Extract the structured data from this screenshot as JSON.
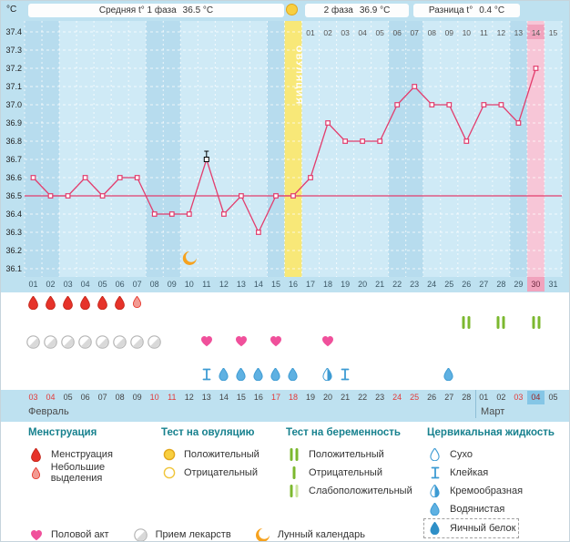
{
  "colors": {
    "page_bg": "#bee1f0",
    "accent_line": "#e23d6d",
    "menstruation": "#e6332a",
    "menstruation_light": "#f29a92",
    "heart": "#f0509b",
    "test_green": "#7cb82f",
    "test_green_pale": "#cbe49c",
    "fluid_blue": "#3d9bd3",
    "fluid_light": "#5fb1e2",
    "fluid_dark": "#2e8fc7",
    "moon": "#f6a21e",
    "ovulation_band": "#f8e878",
    "ovulation_positive": "#f8cf40",
    "current_day": "#f7c6d7",
    "current_day_strong": "#f1a3bd",
    "weekend_col": "#b7dcee",
    "day_col": "#cfeaf6",
    "legend_header": "#17818e",
    "red_date": "#e23a3a",
    "today_bg": "#85c6e6"
  },
  "header": {
    "stats": [
      {
        "label": "Средняя t° 1 фаза",
        "value": "36.5 °C"
      },
      {
        "label": "2 фаза",
        "value": "36.9 °C"
      },
      {
        "label": "Разница t°",
        "value": "0.4 °C"
      }
    ]
  },
  "chart_data": {
    "type": "line",
    "unit": "°C",
    "ylim": [
      36.1,
      37.4
    ],
    "ytick_step": 0.1,
    "cycle_days": [
      "01",
      "02",
      "03",
      "04",
      "05",
      "06",
      "07",
      "08",
      "09",
      "10",
      "11",
      "12",
      "13",
      "14",
      "15",
      "16",
      "17",
      "18",
      "19",
      "20",
      "21",
      "22",
      "23",
      "24",
      "25",
      "26",
      "27",
      "28",
      "29",
      "30",
      "31"
    ],
    "temps": [
      36.6,
      36.5,
      36.5,
      36.6,
      36.5,
      36.6,
      36.6,
      36.4,
      36.4,
      36.4,
      36.7,
      36.4,
      36.5,
      36.3,
      36.5,
      36.5,
      36.6,
      36.9,
      36.8,
      36.8,
      36.8,
      37.0,
      37.1,
      37.0,
      37.0,
      36.8,
      37.0,
      37.0,
      36.9,
      37.2,
      null
    ],
    "excluded_days": [
      11
    ],
    "coverline": 36.5,
    "ovulation": {
      "day": 16,
      "label": "ОВУЛЯЦИЯ"
    },
    "current_day": 30,
    "weekend_days": [
      1,
      2,
      8,
      9,
      15,
      16,
      22,
      23,
      29,
      30
    ],
    "dpo": {
      "start_day": 17,
      "labels": [
        "01",
        "02",
        "03",
        "04",
        "05",
        "06",
        "07",
        "08",
        "09",
        "10",
        "11",
        "12",
        "13",
        "14",
        "15"
      ],
      "highlight": "14"
    },
    "moon_day": 10,
    "legend_position": "bottom",
    "grid": true
  },
  "events": {
    "menstruation_days": [
      1,
      2,
      3,
      4,
      5,
      6
    ],
    "spotting_days": [
      7
    ],
    "medication_days": [
      1,
      2,
      3,
      4,
      5,
      6,
      7,
      8
    ],
    "intercourse_days": [
      11,
      13,
      15,
      18
    ],
    "pregnancy_positive_days": [
      26,
      28,
      30
    ],
    "cervical_fluid": [
      {
        "day": 11,
        "type": "sticky"
      },
      {
        "day": 12,
        "type": "watery"
      },
      {
        "day": 13,
        "type": "watery"
      },
      {
        "day": 14,
        "type": "watery"
      },
      {
        "day": 15,
        "type": "watery"
      },
      {
        "day": 16,
        "type": "watery"
      },
      {
        "day": 18,
        "type": "creamy"
      },
      {
        "day": 19,
        "type": "sticky"
      },
      {
        "day": 25,
        "type": "watery"
      }
    ]
  },
  "calendar": {
    "month_labels": [
      "Февраль",
      "Март"
    ],
    "dates": [
      "03",
      "04",
      "05",
      "06",
      "07",
      "08",
      "09",
      "10",
      "11",
      "12",
      "13",
      "14",
      "15",
      "16",
      "17",
      "18",
      "19",
      "20",
      "21",
      "22",
      "23",
      "24",
      "25",
      "26",
      "27",
      "28",
      "01",
      "02",
      "03",
      "04",
      "05"
    ],
    "red_indices": [
      0,
      1,
      7,
      8,
      14,
      15,
      21,
      22,
      28,
      29
    ],
    "today_index": 29,
    "month_split_index": 26
  },
  "legend": {
    "menstruation": {
      "title": "Менструация",
      "items": [
        {
          "icon": "drop-red",
          "label": "Менструация"
        },
        {
          "icon": "drop-light",
          "label": "Небольшие выделения"
        }
      ]
    },
    "ovulation_test": {
      "title": "Тест на овуляцию",
      "items": [
        {
          "icon": "circle-yellow",
          "label": "Положительный"
        },
        {
          "icon": "circle-outline",
          "label": "Отрицательный"
        }
      ]
    },
    "pregnancy_test": {
      "title": "Тест на беременность",
      "items": [
        {
          "icon": "test-positive",
          "label": "Положительный"
        },
        {
          "icon": "test-negative",
          "label": "Отрицательный"
        },
        {
          "icon": "test-weak",
          "label": "Слабоположительный"
        }
      ]
    },
    "cervical_fluid": {
      "title": "Цервикальная жидкость",
      "items": [
        {
          "icon": "fluid-dry",
          "label": "Сухо"
        },
        {
          "icon": "fluid-sticky",
          "label": "Клейкая"
        },
        {
          "icon": "fluid-creamy",
          "label": "Кремообразная"
        },
        {
          "icon": "fluid-watery",
          "label": "Водянистая"
        },
        {
          "icon": "fluid-eggwhite",
          "label": "Яичный белок",
          "boxed": true
        }
      ]
    },
    "extra": [
      {
        "icon": "heart",
        "label": "Половой акт"
      },
      {
        "icon": "pill",
        "label": "Прием лекарств"
      },
      {
        "icon": "moon",
        "label": "Лунный календарь"
      }
    ]
  }
}
